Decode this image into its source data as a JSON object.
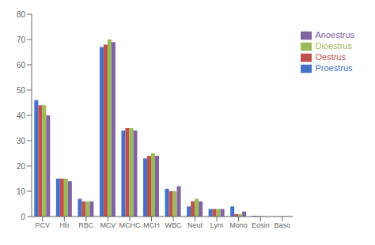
{
  "chart_data": {
    "type": "bar",
    "categories": [
      "PCV",
      "Hb",
      "RBC",
      "MCV",
      "MCHC",
      "MCH",
      "WBC",
      "Neut",
      "Lym",
      "Mono",
      "Eosin",
      "Baso"
    ],
    "series": [
      {
        "name": "Proestrus",
        "color": "#4472C4",
        "values": [
          46,
          15,
          7,
          67,
          34,
          23,
          11,
          4,
          3,
          4,
          0.3,
          0.1
        ]
      },
      {
        "name": "Oestrus",
        "color": "#C0504D",
        "values": [
          44,
          15,
          6,
          68,
          35,
          24,
          10,
          6,
          3,
          1,
          0.2,
          0.1
        ]
      },
      {
        "name": "Dioestrus",
        "color": "#9BBB59",
        "values": [
          44,
          15,
          6,
          70,
          35,
          25,
          10,
          7,
          3,
          1,
          0.2,
          0.1
        ]
      },
      {
        "name": "Anoestrus",
        "color": "#8064A2",
        "values": [
          40,
          14,
          6,
          69,
          34,
          24,
          12,
          6,
          3,
          2,
          0.1,
          0.1
        ]
      }
    ],
    "ylim": [
      0,
      80
    ],
    "yticks": [
      0,
      10,
      20,
      30,
      40,
      50,
      60,
      70,
      80
    ],
    "grid": false,
    "legend": "right"
  }
}
